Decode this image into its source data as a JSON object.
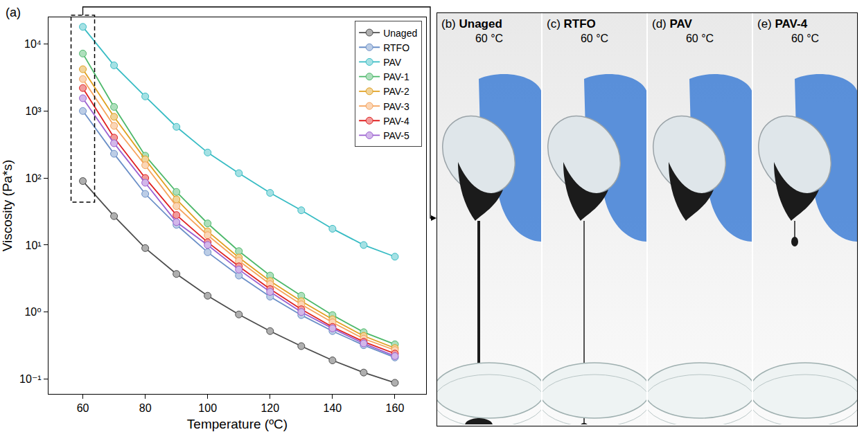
{
  "chart_data": {
    "type": "line",
    "annotations": [
      "(a)"
    ],
    "x_label": "Temperature (ºC)",
    "y_label": "Viscosity (Pa*s)",
    "log": "y",
    "grid": false,
    "legend": "top right",
    "x": [
      60,
      70,
      80,
      90,
      100,
      110,
      120,
      130,
      140,
      150,
      160
    ],
    "xlim": [
      49,
      170
    ],
    "xticks": [
      60,
      80,
      100,
      120,
      140,
      160
    ],
    "ylim": [
      0.06,
      25000
    ],
    "yticks": [
      {
        "value": 0.1,
        "label": "10⁻¹"
      },
      {
        "value": 1,
        "label": "10⁰"
      },
      {
        "value": 10,
        "label": "10¹"
      },
      {
        "value": 100,
        "label": "10²"
      },
      {
        "value": 1000,
        "label": "10³"
      },
      {
        "value": 10000,
        "label": "10⁴"
      }
    ],
    "series": [
      {
        "name": "Unaged",
        "color": "#4d4d4d",
        "marker": "circle",
        "line_style": "solid",
        "values": [
          90,
          27,
          9,
          3.7,
          1.75,
          0.92,
          0.52,
          0.31,
          0.19,
          0.125,
          0.088
        ]
      },
      {
        "name": "RTFO",
        "color": "#6a8fc7",
        "marker": "circle",
        "line_style": "solid",
        "values": [
          1000,
          230,
          58,
          20,
          7.8,
          3.5,
          1.7,
          0.9,
          0.52,
          0.32,
          0.21
        ]
      },
      {
        "name": "PAV",
        "color": "#38bcc4",
        "marker": "circle",
        "line_style": "solid",
        "values": [
          18000,
          4800,
          1650,
          580,
          240,
          118,
          60,
          33,
          17.5,
          10,
          6.7
        ]
      },
      {
        "name": "PAV-1",
        "color": "#4cb86a",
        "marker": "circle",
        "line_style": "solid",
        "values": [
          7200,
          1150,
          215,
          62,
          21,
          8.1,
          3.5,
          1.75,
          0.9,
          0.5,
          0.33
        ]
      },
      {
        "name": "PAV-2",
        "color": "#e0a020",
        "marker": "circle",
        "line_style": "solid",
        "values": [
          4200,
          820,
          190,
          48,
          16,
          6.5,
          2.9,
          1.45,
          0.78,
          0.44,
          0.29
        ]
      },
      {
        "name": "PAV-3",
        "color": "#f5a35c",
        "marker": "circle",
        "line_style": "solid",
        "values": [
          3000,
          600,
          155,
          38,
          14,
          5.8,
          2.6,
          1.3,
          0.7,
          0.4,
          0.27
        ]
      },
      {
        "name": "PAV-4",
        "color": "#e02020",
        "marker": "circle",
        "line_style": "solid",
        "values": [
          2200,
          400,
          100,
          28,
          11,
          4.8,
          2.2,
          1.1,
          0.6,
          0.36,
          0.24
        ]
      },
      {
        "name": "PAV-5",
        "color": "#9a5fd0",
        "marker": "circle",
        "line_style": "solid",
        "values": [
          1550,
          330,
          85,
          22,
          10,
          4.3,
          2.0,
          1.0,
          0.57,
          0.34,
          0.22
        ]
      }
    ]
  },
  "photos": {
    "panels": [
      {
        "letter": "(b)",
        "title": "Unaged",
        "temperature": "60 °C"
      },
      {
        "letter": "(c)",
        "title": "RTFO",
        "temperature": "60 °C"
      },
      {
        "letter": "(d)",
        "title": "PAV",
        "temperature": "60 °C"
      },
      {
        "letter": "(e)",
        "title": "PAV-4",
        "temperature": "60 °C"
      }
    ]
  }
}
